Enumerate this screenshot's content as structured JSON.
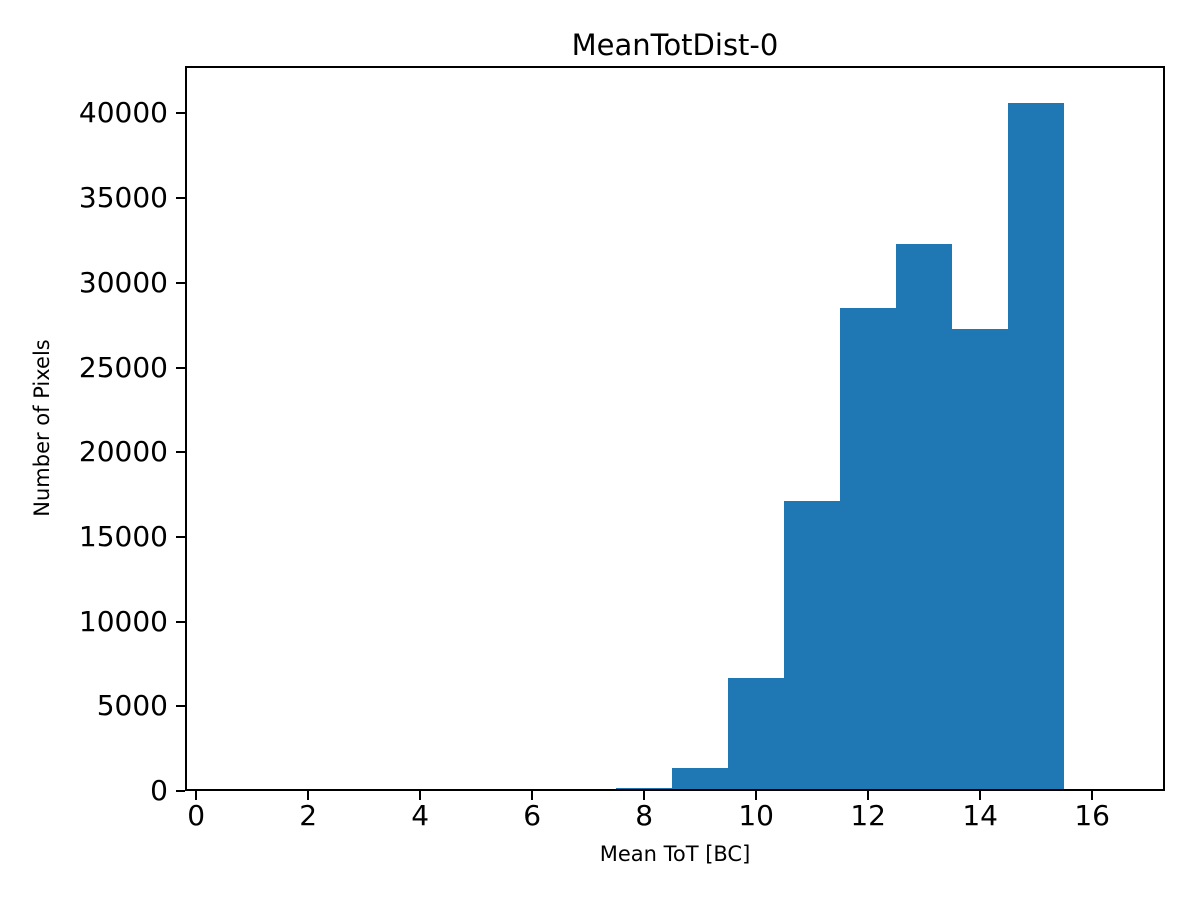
{
  "figure": {
    "background_color": "#ffffff",
    "text_color": "#000000"
  },
  "chart_data": {
    "type": "bar",
    "subtype": "histogram",
    "title": "MeanTotDist-0",
    "xlabel": "Mean ToT [BC]",
    "ylabel": "Number of Pixels",
    "bar_color": "#1f77b4",
    "bin_edges": [
      7.5,
      8.5,
      9.5,
      10.5,
      11.5,
      12.5,
      13.5,
      14.5,
      15.5
    ],
    "values": [
      200,
      1350,
      6700,
      17100,
      28500,
      32300,
      27250,
      40600
    ],
    "xlim": [
      -0.2,
      17.3
    ],
    "ylim": [
      0,
      42800
    ],
    "xticks": [
      0,
      2,
      4,
      6,
      8,
      10,
      12,
      14,
      16
    ],
    "yticks": [
      0,
      5000,
      10000,
      15000,
      20000,
      25000,
      30000,
      35000,
      40000
    ],
    "grid": false,
    "legend_position": "none"
  }
}
